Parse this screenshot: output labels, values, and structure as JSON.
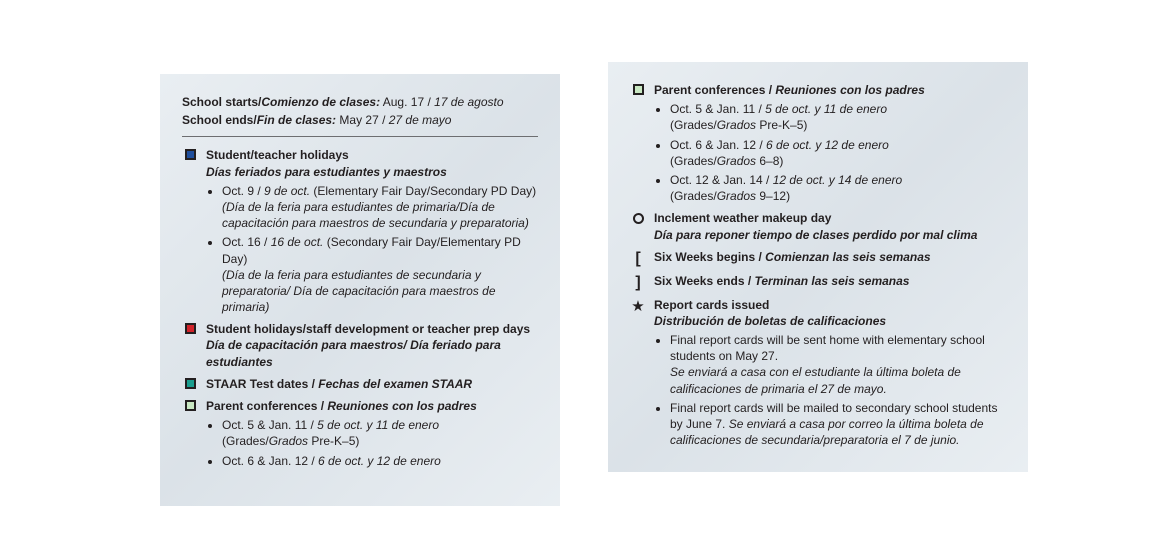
{
  "colors": {
    "blue": "#1f4e9c",
    "red": "#d2232a",
    "teal": "#1a9e8f",
    "pale_green": "#c9e8c3",
    "text": "#231f20",
    "panel_bg_a": "#e9eef2",
    "panel_bg_b": "#dbe2e8"
  },
  "header": {
    "starts_label_en": "School starts/",
    "starts_label_es": "Comienzo de clases:",
    "starts_val_en": " Aug. 17 / ",
    "starts_val_es": "17 de agosto",
    "ends_label_en": "School ends/",
    "ends_label_es": "Fin de clases:",
    "ends_val_en": " May 27 / ",
    "ends_val_es": "27 de mayo"
  },
  "s_holidays": {
    "title_en": "Student/teacher holidays",
    "title_es": "Días feriados para estudiantes y maestros",
    "b1_en": "Oct. 9 / ",
    "b1_es1": "9 de oct.",
    "b1_tail": " (Elementary Fair Day/Secondary PD Day)",
    "b1_es2": "(Día de la feria para estudiantes de primaria/Día de capacitación para maestros de secundaria y preparatoria)",
    "b2_en": "Oct. 16 / ",
    "b2_es1": "16 de oct.",
    "b2_tail": " (Secondary Fair Day/Elementary PD Day)",
    "b2_es2": "(Día de la feria para estudiantes de secundaria y preparatoria/ Día de capacitación para maestros de primaria)"
  },
  "prep": {
    "title_en": "Student holidays/staff development or teacher prep days",
    "title_es": "Día de capacitación para maestros/ Día feriado para estudiantes"
  },
  "staar": {
    "title_en": "STAAR Test dates / ",
    "title_es": "Fechas del examen STAAR"
  },
  "parent1": {
    "title_en": "Parent conferences / ",
    "title_es": "Reuniones con los padres",
    "b1_a": "Oct. 5 & Jan. 11 / ",
    "b1_b": "5 de oct. y 11 de enero",
    "b1_c": "(Grades/",
    "b1_d": "Grados",
    "b1_e": " Pre-K–5)",
    "b2_a": "Oct. 6 & Jan. 12 / ",
    "b2_b": "6 de oct. y 12 de enero"
  },
  "parent2": {
    "title_en": "Parent conferences / ",
    "title_es": "Reuniones con los padres",
    "b1_a": "Oct. 5 & Jan. 11 / ",
    "b1_b": "5 de oct. y 11 de enero",
    "b1_c": "(Grades/",
    "b1_d": "Grados",
    "b1_e": " Pre-K–5)",
    "b2_a": "Oct. 6 & Jan. 12 / ",
    "b2_b": "6 de oct. y 12 de enero",
    "b2_c": "(Grades/",
    "b2_d": "Grados",
    "b2_e": " 6–8)",
    "b3_a": "Oct. 12 & Jan. 14 / ",
    "b3_b": "12 de oct. y 14 de enero",
    "b3_c": "(Grades/",
    "b3_d": "Grados",
    "b3_e": " 9–12)"
  },
  "weather": {
    "title_en": "Inclement weather makeup day",
    "title_es": "Día para reponer tiempo de clases perdido por mal clima"
  },
  "six_begin": {
    "title_en": "Six Weeks begins / ",
    "title_es": "Comienzan las seis semanas"
  },
  "six_end": {
    "title_en": "Six Weeks ends / ",
    "title_es": "Terminan las seis semanas"
  },
  "report": {
    "title_en": "Report cards issued",
    "title_es": "Distribución de boletas de calificaciones",
    "b1_en": "Final report cards will be sent home with elementary school students on May 27.",
    "b1_es": "Se enviará a casa con el estudiante la última boleta de calificaciones de primaria el 27 de mayo.",
    "b2_en": "Final report cards will be mailed to secondary school students by June 7. ",
    "b2_es": "Se enviará a casa por correo la última boleta de calificaciones de secundaria/preparatoria el 7 de junio."
  },
  "markers": {
    "open_bracket": "[",
    "close_bracket": "]",
    "star": "★"
  }
}
